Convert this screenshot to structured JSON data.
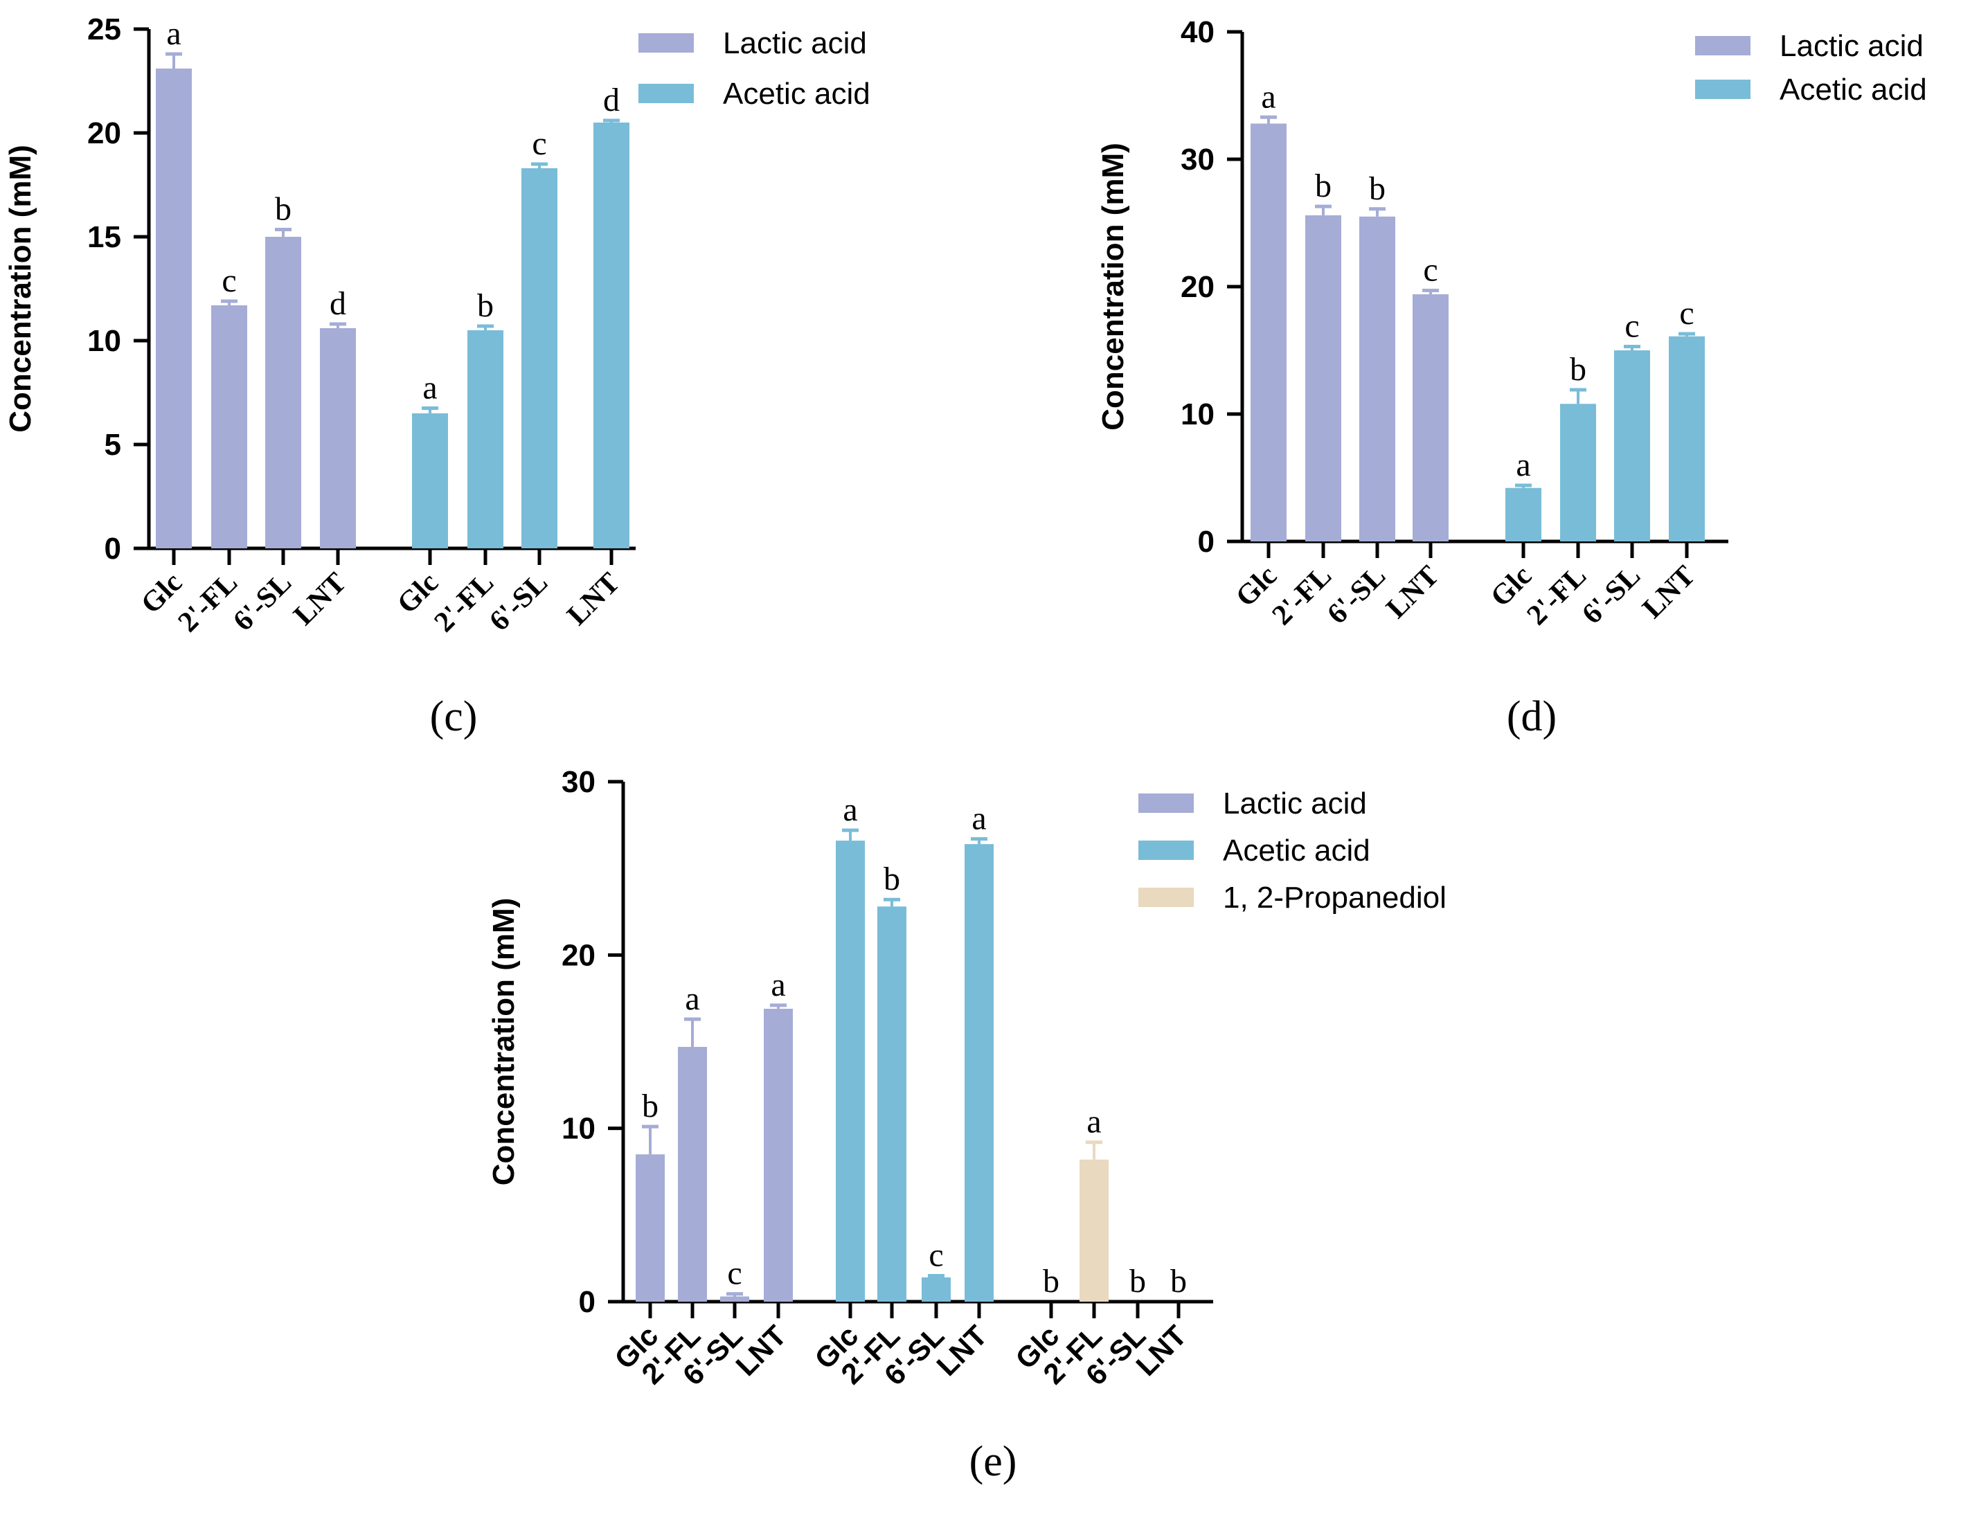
{
  "colors": {
    "lactic": "#a5acd6",
    "acetic": "#79bcd8",
    "propanediol": "#e8d9bf",
    "axis": "#000000"
  },
  "chart_data": [
    {
      "panel_label": "(c)",
      "type": "bar",
      "ylabel": "Concentration (mM)",
      "ylim": [
        0,
        25
      ],
      "yticks": [
        "0",
        "5",
        "10",
        "15",
        "20",
        "25"
      ],
      "legend_position": "top-right",
      "groups": [
        {
          "series": "Lactic acid",
          "color_key": "lactic",
          "categories": [
            "Glc",
            "2'-FL",
            "6'-SL",
            "LNT"
          ],
          "values": [
            23.1,
            11.7,
            15.0,
            10.6
          ],
          "errors": [
            0.7,
            0.2,
            0.35,
            0.2
          ],
          "letters": [
            "a",
            "c",
            "b",
            "d"
          ]
        },
        {
          "series": "Acetic acid",
          "color_key": "acetic",
          "categories": [
            "Glc",
            "2'-FL",
            "6'-SL",
            "LNT"
          ],
          "values": [
            6.5,
            10.5,
            18.3,
            20.5
          ],
          "errors": [
            0.25,
            0.2,
            0.2,
            0.1
          ],
          "letters": [
            "a",
            "b",
            "c",
            "d"
          ]
        }
      ],
      "legend": [
        {
          "label": "Lactic acid",
          "color_key": "lactic"
        },
        {
          "label": "Acetic acid",
          "color_key": "acetic"
        }
      ]
    },
    {
      "panel_label": "(d)",
      "type": "bar",
      "ylabel": "Concentration (mM)",
      "ylim": [
        0,
        40
      ],
      "yticks": [
        "0",
        "10",
        "20",
        "30",
        "40"
      ],
      "legend_position": "top-right",
      "groups": [
        {
          "series": "Lactic acid",
          "color_key": "lactic",
          "categories": [
            "Glc",
            "2'-FL",
            "6'-SL",
            "LNT"
          ],
          "values": [
            32.8,
            25.6,
            25.5,
            19.4
          ],
          "errors": [
            0.5,
            0.7,
            0.6,
            0.3
          ],
          "letters": [
            "a",
            "b",
            "b",
            "c"
          ]
        },
        {
          "series": "Acetic acid",
          "color_key": "acetic",
          "categories": [
            "Glc",
            "2'-FL",
            "6'-SL",
            "LNT"
          ],
          "values": [
            4.2,
            10.8,
            15.0,
            16.1
          ],
          "errors": [
            0.2,
            1.1,
            0.3,
            0.2
          ],
          "letters": [
            "a",
            "b",
            "c",
            "c"
          ]
        }
      ],
      "legend": [
        {
          "label": "Lactic acid",
          "color_key": "lactic"
        },
        {
          "label": "Acetic acid",
          "color_key": "acetic"
        }
      ]
    },
    {
      "panel_label": "(e)",
      "type": "bar",
      "ylabel": "Concentration (mM)",
      "ylim": [
        0,
        30
      ],
      "yticks": [
        "0",
        "10",
        "20",
        "30"
      ],
      "legend_position": "top-right",
      "groups": [
        {
          "series": "Lactic acid",
          "color_key": "lactic",
          "categories": [
            "Glc",
            "2'-FL",
            "6'-SL",
            "LNT"
          ],
          "values": [
            8.5,
            14.7,
            0.3,
            16.9
          ],
          "errors": [
            1.6,
            1.6,
            0.15,
            0.2
          ],
          "letters": [
            "b",
            "a",
            "c",
            "a"
          ]
        },
        {
          "series": "Acetic acid",
          "color_key": "acetic",
          "categories": [
            "Glc",
            "2'-FL",
            "6'-SL",
            "LNT"
          ],
          "values": [
            26.6,
            22.8,
            1.4,
            26.4
          ],
          "errors": [
            0.6,
            0.4,
            0.1,
            0.3
          ],
          "letters": [
            "a",
            "b",
            "c",
            "a"
          ]
        },
        {
          "series": "1, 2-Propanediol",
          "color_key": "propanediol",
          "categories": [
            "Glc",
            "2'-FL",
            "6'-SL",
            "LNT"
          ],
          "values": [
            0,
            8.2,
            0,
            0
          ],
          "errors": [
            0,
            1.0,
            0,
            0
          ],
          "letters": [
            "b",
            "a",
            "b",
            "b"
          ]
        }
      ],
      "legend": [
        {
          "label": "Lactic acid",
          "color_key": "lactic"
        },
        {
          "label": "Acetic acid",
          "color_key": "acetic"
        },
        {
          "label": "1, 2-Propanediol",
          "color_key": "propanediol"
        }
      ]
    }
  ]
}
